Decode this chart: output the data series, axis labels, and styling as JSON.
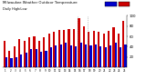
{
  "title": "Milwaukee Weather Outdoor Temperature",
  "subtitle": "Daily High/Low",
  "days": [
    1,
    2,
    3,
    4,
    5,
    6,
    7,
    8,
    9,
    10,
    11,
    12,
    13,
    14,
    15,
    16,
    17,
    18,
    19,
    20,
    21,
    22,
    23,
    24,
    25
  ],
  "highs": [
    52,
    32,
    40,
    55,
    52,
    58,
    60,
    52,
    58,
    65,
    68,
    72,
    72,
    75,
    75,
    95,
    80,
    68,
    70,
    68,
    65,
    70,
    78,
    65,
    90
  ],
  "lows": [
    20,
    18,
    20,
    25,
    28,
    35,
    35,
    30,
    32,
    38,
    42,
    45,
    48,
    42,
    40,
    48,
    45,
    42,
    45,
    40,
    38,
    42,
    48,
    38,
    45
  ],
  "high_color": "#cc0000",
  "low_color": "#0000cc",
  "background": "#ffffff",
  "ylim": [
    0,
    100
  ],
  "yticks": [
    20,
    40,
    60,
    80,
    100
  ],
  "dashed_lines": [
    15.5,
    17.5
  ],
  "bar_width": 0.4
}
